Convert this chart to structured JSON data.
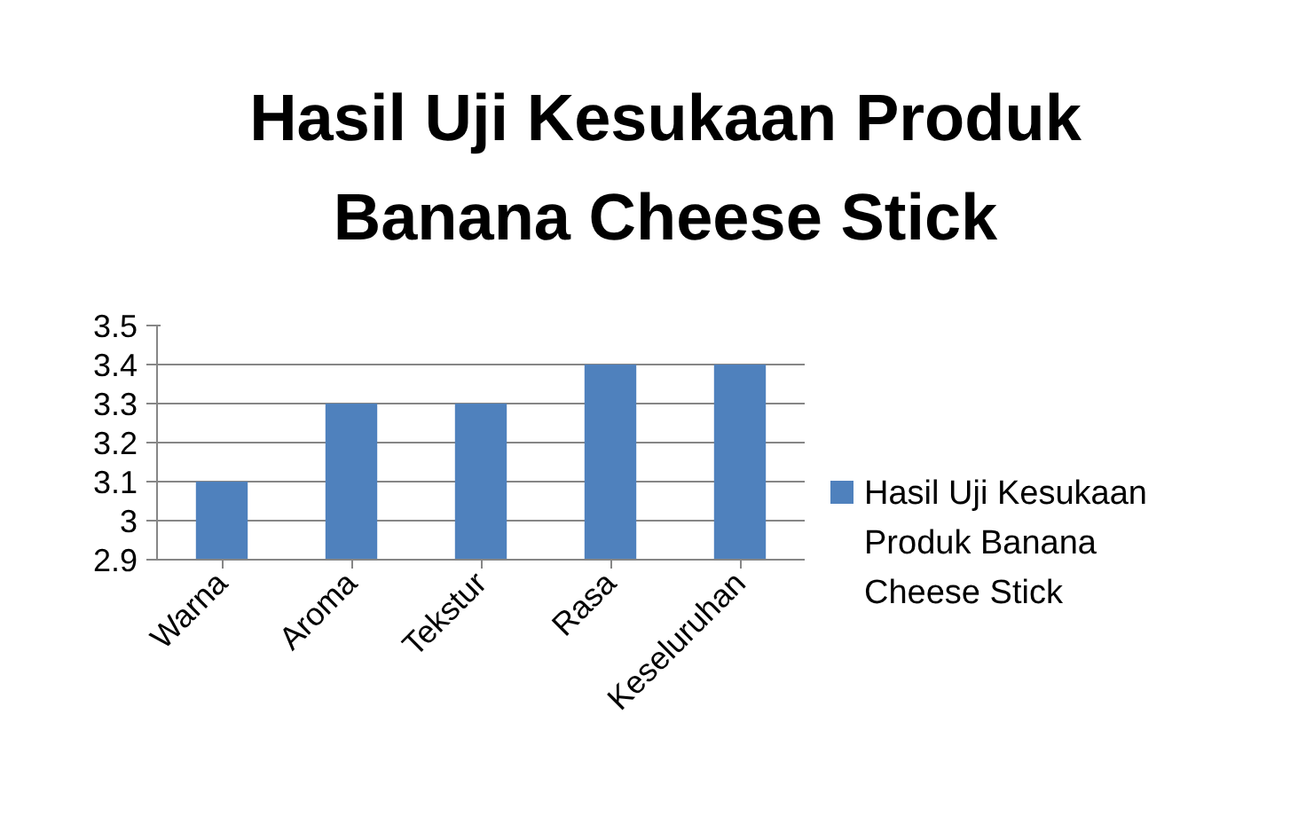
{
  "chart_data": {
    "type": "bar",
    "title": "Hasil Uji Kesukaan Produk Banana Cheese Stick",
    "categories": [
      "Warna",
      "Aroma",
      "Tekstur",
      "Rasa",
      "Keseluruhan"
    ],
    "series": [
      {
        "name": "Hasil Uji Kesukaan Produk Banana Cheese Stick",
        "color": "#4f81bd",
        "values": [
          3.1,
          3.3,
          3.3,
          3.4,
          3.4
        ]
      }
    ],
    "ylim": [
      2.9,
      3.5
    ],
    "yticks": [
      2.9,
      3,
      3.1,
      3.2,
      3.3,
      3.4,
      3.5
    ],
    "grid": "y",
    "legend": "right"
  }
}
